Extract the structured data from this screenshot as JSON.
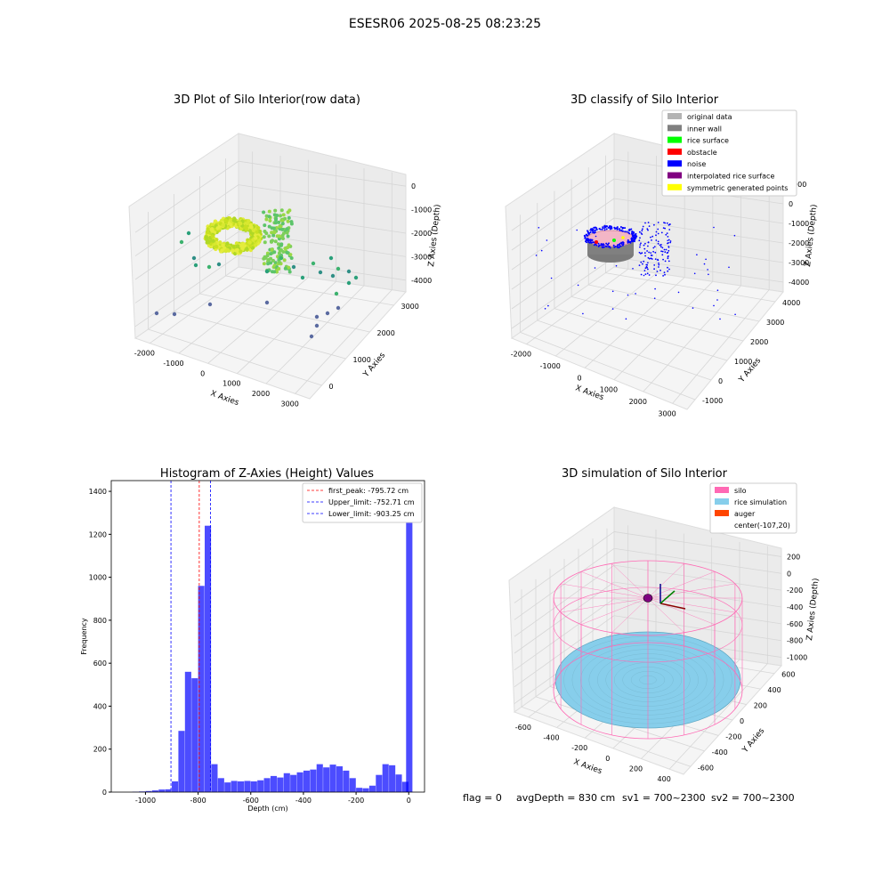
{
  "suptitle": "ESESR06 2025-08-25 08:23:25",
  "footer": {
    "flag": "flag = 0",
    "avg_depth": "avgDepth = 830 cm",
    "sv1": "sv1 = 700~2300",
    "sv2": "sv2 = 700~2300"
  },
  "panels": {
    "raw": {
      "title": "3D Plot of Silo Interior(row data)",
      "xlabel": "X Axies",
      "ylabel": "Y Axies",
      "zlabel": "Z Axies (Depth)",
      "xticks": [
        "-2000",
        "-1000",
        "0",
        "1000",
        "2000",
        "3000"
      ],
      "yticks": [
        "0",
        "1000",
        "2000",
        "3000"
      ],
      "zticks": [
        "0",
        "-1000",
        "-2000",
        "-3000",
        "-4000"
      ]
    },
    "classify": {
      "title": "3D classify of Silo Interior",
      "xlabel": "X Axies",
      "ylabel": "Y Axies",
      "zlabel": "Z Axies (Depth)",
      "xticks": [
        "-2000",
        "-1000",
        "0",
        "1000",
        "2000",
        "3000"
      ],
      "yticks": [
        "-1000",
        "0",
        "1000",
        "2000",
        "3000",
        "4000"
      ],
      "zticks": [
        "1000",
        "0",
        "-1000",
        "-2000",
        "-3000",
        "-4000"
      ],
      "legend": [
        {
          "label": "original data",
          "color": "#b3b3b3"
        },
        {
          "label": "inner wall",
          "color": "#808080"
        },
        {
          "label": "rice surface",
          "color": "#00ff00"
        },
        {
          "label": "obstacle",
          "color": "#ff0000"
        },
        {
          "label": "noise",
          "color": "#0000ff"
        },
        {
          "label": "interpolated rice surface",
          "color": "#800080"
        },
        {
          "label": "symmetric generated points",
          "color": "#ffff00"
        }
      ]
    },
    "simulation": {
      "title": "3D simulation of Silo Interior",
      "xlabel": "X Axies",
      "ylabel": "Y Axies",
      "zlabel": "Z Axies (Depth)",
      "xticks": [
        "-600",
        "-400",
        "-200",
        "0",
        "200",
        "400"
      ],
      "yticks": [
        "-600",
        "-400",
        "-200",
        "0",
        "200",
        "400",
        "600"
      ],
      "zticks": [
        "200",
        "0",
        "-200",
        "-400",
        "-600",
        "-800",
        "-1000"
      ],
      "legend": [
        {
          "label": "silo",
          "color": "#ff69b4"
        },
        {
          "label": "rice simulation",
          "color": "#87ceeb"
        },
        {
          "label": "auger",
          "color": "#ff4500"
        },
        {
          "label": "center(-107,20)",
          "color": ""
        }
      ]
    }
  },
  "chart_data": {
    "type": "bar",
    "title": "Histogram of Z-Axies (Height) Values",
    "xlabel": "Depth (cm)",
    "ylabel": "Frequency",
    "xlim": [
      -1130,
      60
    ],
    "ylim": [
      0,
      1450
    ],
    "xticks": [
      -1000,
      -800,
      -600,
      -400,
      -200,
      0
    ],
    "yticks": [
      0,
      200,
      400,
      600,
      800,
      1000,
      1200,
      1400
    ],
    "bin_width": 25,
    "bins_start": [
      -1050,
      -1025,
      -1000,
      -975,
      -950,
      -925,
      -900,
      -875,
      -850,
      -825,
      -800,
      -775,
      -750,
      -725,
      -700,
      -675,
      -650,
      -625,
      -600,
      -575,
      -550,
      -525,
      -500,
      -475,
      -450,
      -425,
      -400,
      -375,
      -350,
      -325,
      -300,
      -275,
      -250,
      -225,
      -200,
      -175,
      -150,
      -125,
      -100,
      -75,
      -50,
      -25,
      -10
    ],
    "values": [
      2,
      3,
      5,
      8,
      12,
      13,
      50,
      285,
      560,
      530,
      960,
      1240,
      130,
      65,
      45,
      52,
      50,
      52,
      50,
      55,
      65,
      75,
      68,
      88,
      80,
      92,
      100,
      105,
      130,
      115,
      128,
      120,
      100,
      65,
      20,
      18,
      30,
      80,
      130,
      125,
      82,
      48,
      1380
    ],
    "bar_color": "#0000ff",
    "lines": [
      {
        "label": "first_peak: -795.72 cm",
        "x": -795.72,
        "color": "#ff0000"
      },
      {
        "label": "Upper_limit: -752.71 cm",
        "x": -752.71,
        "color": "#0000ff"
      },
      {
        "label": "Lower_limit: -903.25 cm",
        "x": -903.25,
        "color": "#0000ff"
      }
    ],
    "legend_position": "top-right"
  }
}
